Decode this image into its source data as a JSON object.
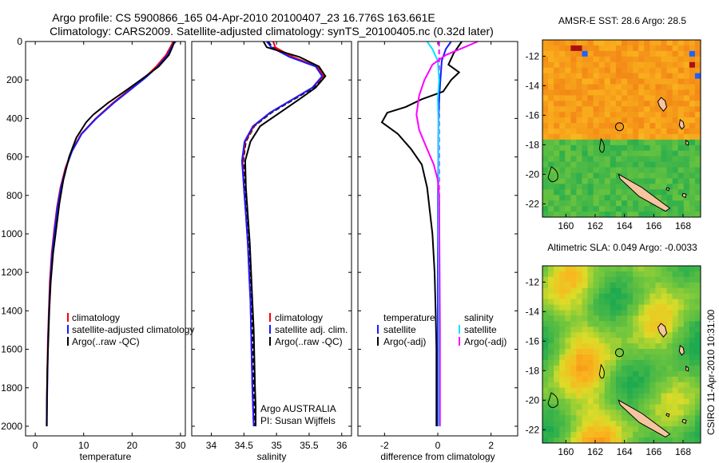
{
  "title": {
    "line1": "Argo profile: CS 5900866_165 04-Apr-2010 20100407_23 16.776S 163.661E",
    "line2": "Climatology: CARS2009. Satellite-adjusted climatology: synTS_20100405.nc (0.32d later)"
  },
  "side_label": "CSIRO 11-Apr-2010 10:31:00",
  "argo_credit": {
    "line1": "Argo AUSTRALIA",
    "line2": "PI: Susan Wijffels"
  },
  "colors": {
    "climatology": "#ff0000",
    "satellite": "#1a1aff",
    "argo": "#000000",
    "sal_satellite": "#00e5ff",
    "sal_argo": "#ff00ff",
    "sal_clim": "#8800ff",
    "zero_line": "#ff00ff",
    "land": "#f5c5a0"
  },
  "chart_data": [
    {
      "type": "line",
      "xlabel": "temperature",
      "xlim": [
        -2,
        31
      ],
      "ylim": [
        0,
        2050
      ],
      "xticks": [
        0,
        10,
        20,
        30
      ],
      "yticks": [
        0,
        200,
        400,
        600,
        800,
        1000,
        1200,
        1400,
        1600,
        1800,
        2000
      ],
      "legend": [
        "climatology",
        "satellite-adjusted climatology",
        "Argo(..raw -QC)"
      ],
      "series": [
        {
          "name": "climatology",
          "color": "#ff0000",
          "x": [
            28.5,
            28.0,
            27.0,
            25.0,
            22.5,
            19.5,
            16.0,
            12.5,
            9.5,
            7.5,
            6.2,
            5.2,
            4.5,
            3.9,
            3.4,
            3.0,
            2.8,
            2.6,
            2.5,
            2.4,
            2.35
          ],
          "y": [
            0,
            25,
            70,
            130,
            190,
            250,
            320,
            400,
            480,
            570,
            660,
            760,
            860,
            980,
            1100,
            1250,
            1400,
            1550,
            1700,
            1850,
            2000
          ]
        },
        {
          "name": "satellite-adjusted",
          "color": "#1a1aff",
          "x": [
            29.0,
            28.2,
            27.3,
            25.3,
            22.7,
            19.7,
            16.2,
            12.6,
            9.6,
            7.6,
            6.3,
            5.3,
            4.6,
            4.0,
            3.5,
            3.1,
            2.85,
            2.65,
            2.55,
            2.45,
            2.4
          ],
          "y": [
            0,
            25,
            70,
            130,
            190,
            250,
            320,
            400,
            480,
            570,
            660,
            760,
            860,
            980,
            1100,
            1250,
            1400,
            1550,
            1700,
            1850,
            2000
          ]
        },
        {
          "name": "Argo",
          "color": "#000000",
          "x": [
            28.7,
            28.4,
            27.6,
            25.5,
            22.3,
            19.0,
            15.0,
            12.0,
            10.5,
            8.5,
            7.0,
            5.8,
            5.0,
            4.4,
            3.7,
            3.2,
            2.9,
            2.7,
            2.5,
            2.4,
            2.35
          ],
          "y": [
            0,
            25,
            70,
            130,
            190,
            250,
            320,
            380,
            420,
            500,
            600,
            720,
            840,
            960,
            1100,
            1250,
            1400,
            1550,
            1700,
            1850,
            2000
          ]
        }
      ]
    },
    {
      "type": "line",
      "xlabel": "salinity",
      "xlim": [
        33.7,
        36.15
      ],
      "ylim": [
        0,
        2050
      ],
      "xticks": [
        34,
        34.5,
        35,
        35.5,
        36
      ],
      "legend": [
        "climatology",
        "satellite adj. clim.",
        "Argo(..raw -QC)"
      ],
      "series": [
        {
          "name": "climatology",
          "color": "#ff0000",
          "x": [
            34.95,
            34.98,
            35.25,
            35.62,
            35.72,
            35.55,
            35.25,
            34.9,
            34.65,
            34.52,
            34.48,
            34.5,
            34.53,
            34.56,
            34.58,
            34.6,
            34.61,
            34.62,
            34.63,
            34.64,
            34.65
          ],
          "y": [
            0,
            30,
            80,
            130,
            180,
            240,
            300,
            370,
            440,
            520,
            620,
            760,
            900,
            1050,
            1200,
            1350,
            1500,
            1650,
            1800,
            1900,
            2000
          ]
        },
        {
          "name": "satellite-adjusted",
          "color": "#1a1aff",
          "x": [
            34.85,
            34.92,
            35.2,
            35.6,
            35.7,
            35.55,
            35.25,
            34.9,
            34.64,
            34.51,
            34.47,
            34.5,
            34.53,
            34.56,
            34.58,
            34.6,
            34.61,
            34.62,
            34.63,
            34.64,
            34.65
          ],
          "y": [
            0,
            30,
            80,
            130,
            180,
            240,
            300,
            370,
            440,
            520,
            620,
            760,
            900,
            1050,
            1200,
            1350,
            1500,
            1650,
            1800,
            1900,
            2000
          ]
        },
        {
          "name": "Argo",
          "color": "#000000",
          "x": [
            34.8,
            34.85,
            35.35,
            35.65,
            35.75,
            35.6,
            35.35,
            35.05,
            34.75,
            34.6,
            34.52,
            34.53,
            34.56,
            34.59,
            34.61,
            34.63,
            34.65,
            34.66,
            34.67,
            34.68,
            34.68
          ],
          "y": [
            0,
            30,
            80,
            130,
            180,
            240,
            300,
            370,
            440,
            520,
            620,
            760,
            900,
            1050,
            1200,
            1350,
            1500,
            1650,
            1800,
            1900,
            2000
          ]
        }
      ]
    },
    {
      "type": "line",
      "xlabel": "difference from climatology",
      "xlim": [
        -3.0,
        3.0
      ],
      "ylim": [
        0,
        2050
      ],
      "xticks": [
        -2,
        0,
        2
      ],
      "legend": [
        "temperature",
        "satellite",
        "Argo(-adj)",
        "salinity",
        "satellite",
        "Argo(-adj)"
      ],
      "series": [
        {
          "name": "temperature satellite",
          "color": "#1a1aff",
          "x": [
            0.5,
            0.3,
            0.15,
            0.1,
            0.05,
            0.03,
            0.02,
            0.02,
            0.01,
            0.01,
            0.0,
            0.0,
            0.0,
            0.0,
            0.0
          ],
          "y": [
            0,
            40,
            100,
            200,
            300,
            400,
            500,
            600,
            800,
            1000,
            1200,
            1400,
            1600,
            1800,
            2000
          ]
        },
        {
          "name": "temperature Argo(-adj)",
          "color": "#000000",
          "x": [
            0.9,
            0.6,
            0.4,
            0.8,
            0.5,
            0.2,
            -0.6,
            -1.2,
            -1.9,
            -2.1,
            -1.5,
            -1.0,
            -0.6,
            -0.4,
            -0.3,
            -0.2,
            -0.12,
            -0.08,
            -0.05,
            -0.05,
            -0.05
          ],
          "y": [
            0,
            60,
            120,
            160,
            200,
            260,
            300,
            340,
            370,
            420,
            480,
            560,
            640,
            760,
            880,
            1000,
            1200,
            1400,
            1600,
            1800,
            2000
          ]
        },
        {
          "name": "salinity satellite",
          "color": "#00e5ff",
          "x": [
            -0.4,
            -0.2,
            0.0,
            0.05,
            0.0,
            0.02,
            0.03,
            0.02,
            0.03,
            0.03,
            0.03,
            0.04,
            0.04,
            0.04,
            0.04
          ],
          "y": [
            0,
            40,
            100,
            200,
            300,
            400,
            500,
            600,
            800,
            1000,
            1200,
            1400,
            1600,
            1800,
            2000
          ]
        },
        {
          "name": "salinity Argo(-adj)",
          "color": "#ff00ff",
          "x": [
            1.5,
            1.0,
            0.3,
            -0.2,
            -0.5,
            -0.7,
            -0.8,
            -0.7,
            -0.4,
            -0.15,
            0.0,
            0.05,
            0.06,
            0.07,
            0.08,
            0.08,
            0.08
          ],
          "y": [
            0,
            30,
            70,
            120,
            200,
            280,
            380,
            460,
            560,
            640,
            720,
            800,
            1000,
            1200,
            1500,
            1800,
            2000
          ]
        }
      ]
    }
  ],
  "maps": [
    {
      "title": "AMSR-E SST: 28.6  Argo: 28.5",
      "xticks": [
        160,
        162,
        164,
        166,
        168
      ],
      "yticks": [
        -12,
        -14,
        -16,
        -18,
        -20,
        -22
      ]
    },
    {
      "title": "Altimetric SLA: 0.049  Argo: -0.0033",
      "xticks": [
        160,
        162,
        164,
        166,
        168
      ],
      "yticks": [
        -12,
        -14,
        -16,
        -18,
        -20,
        -22
      ]
    }
  ]
}
